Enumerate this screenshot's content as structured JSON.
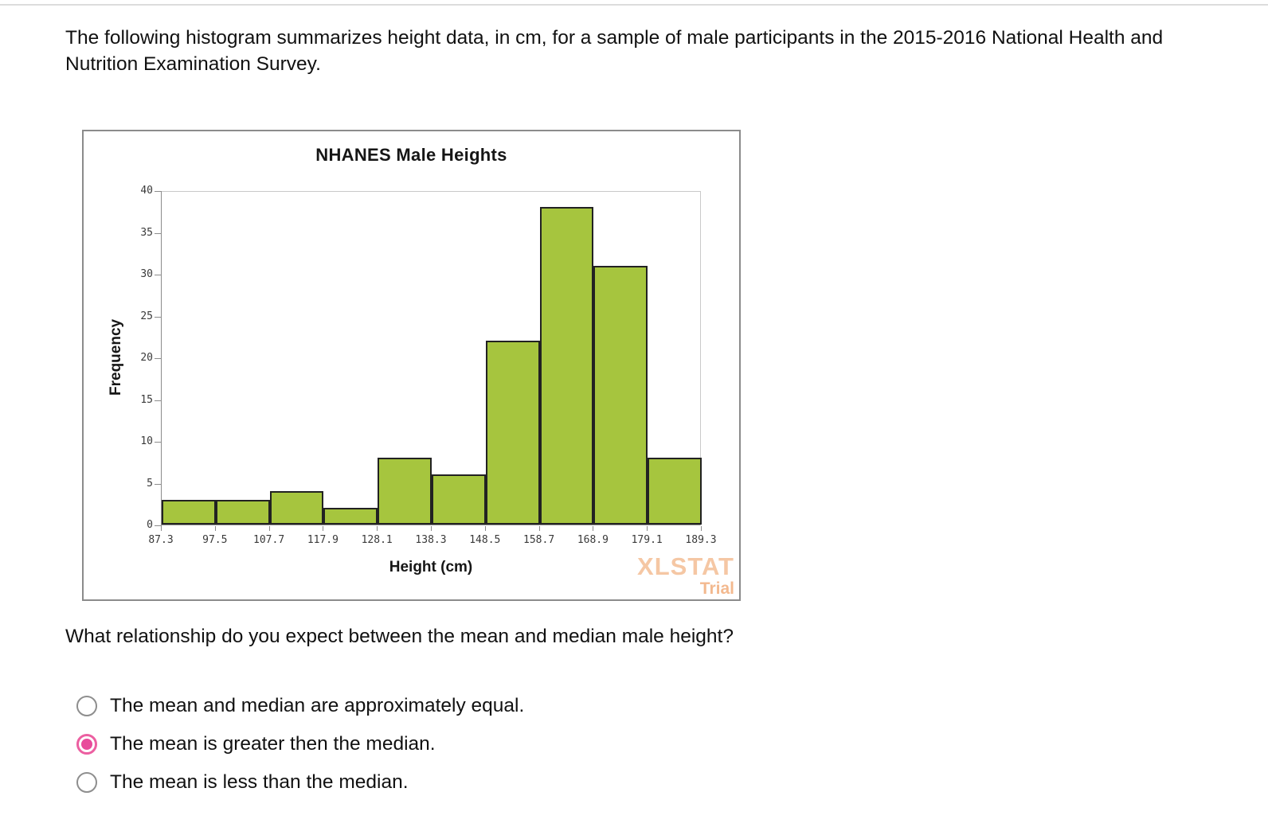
{
  "page": {
    "intro": "The following histogram summarizes height data, in cm, for a sample of male participants in the 2015-2016 National Health and Nutrition Examination Survey."
  },
  "chart_data": {
    "type": "bar",
    "title": "NHANES Male Heights",
    "xlabel": "Height (cm)",
    "ylabel": "Frequency",
    "bin_edges": [
      "87.3",
      "97.5",
      "107.7",
      "117.9",
      "128.1",
      "138.3",
      "148.5",
      "158.7",
      "168.9",
      "179.1",
      "189.3"
    ],
    "values": [
      3,
      3,
      4,
      2,
      8,
      6,
      22,
      38,
      31,
      8
    ],
    "ylim": [
      0,
      40
    ],
    "yticks": [
      0,
      5,
      10,
      15,
      20,
      25,
      30,
      35,
      40
    ],
    "grid": "none",
    "bar_color": "#a6c53e",
    "bar_border_color": "#222222",
    "watermark_line1": "XLSTAT",
    "watermark_line2": "Trial",
    "watermark_color": "#f5c7a4"
  },
  "question": {
    "text": "What relationship do you expect between the mean and median male height?",
    "selected_color": "#ec5fa1",
    "options": [
      {
        "label": "The mean and median are approximately equal.",
        "selected": false
      },
      {
        "label": "The mean is greater then the median.",
        "selected": true
      },
      {
        "label": "The mean is less than the median.",
        "selected": false
      }
    ]
  }
}
